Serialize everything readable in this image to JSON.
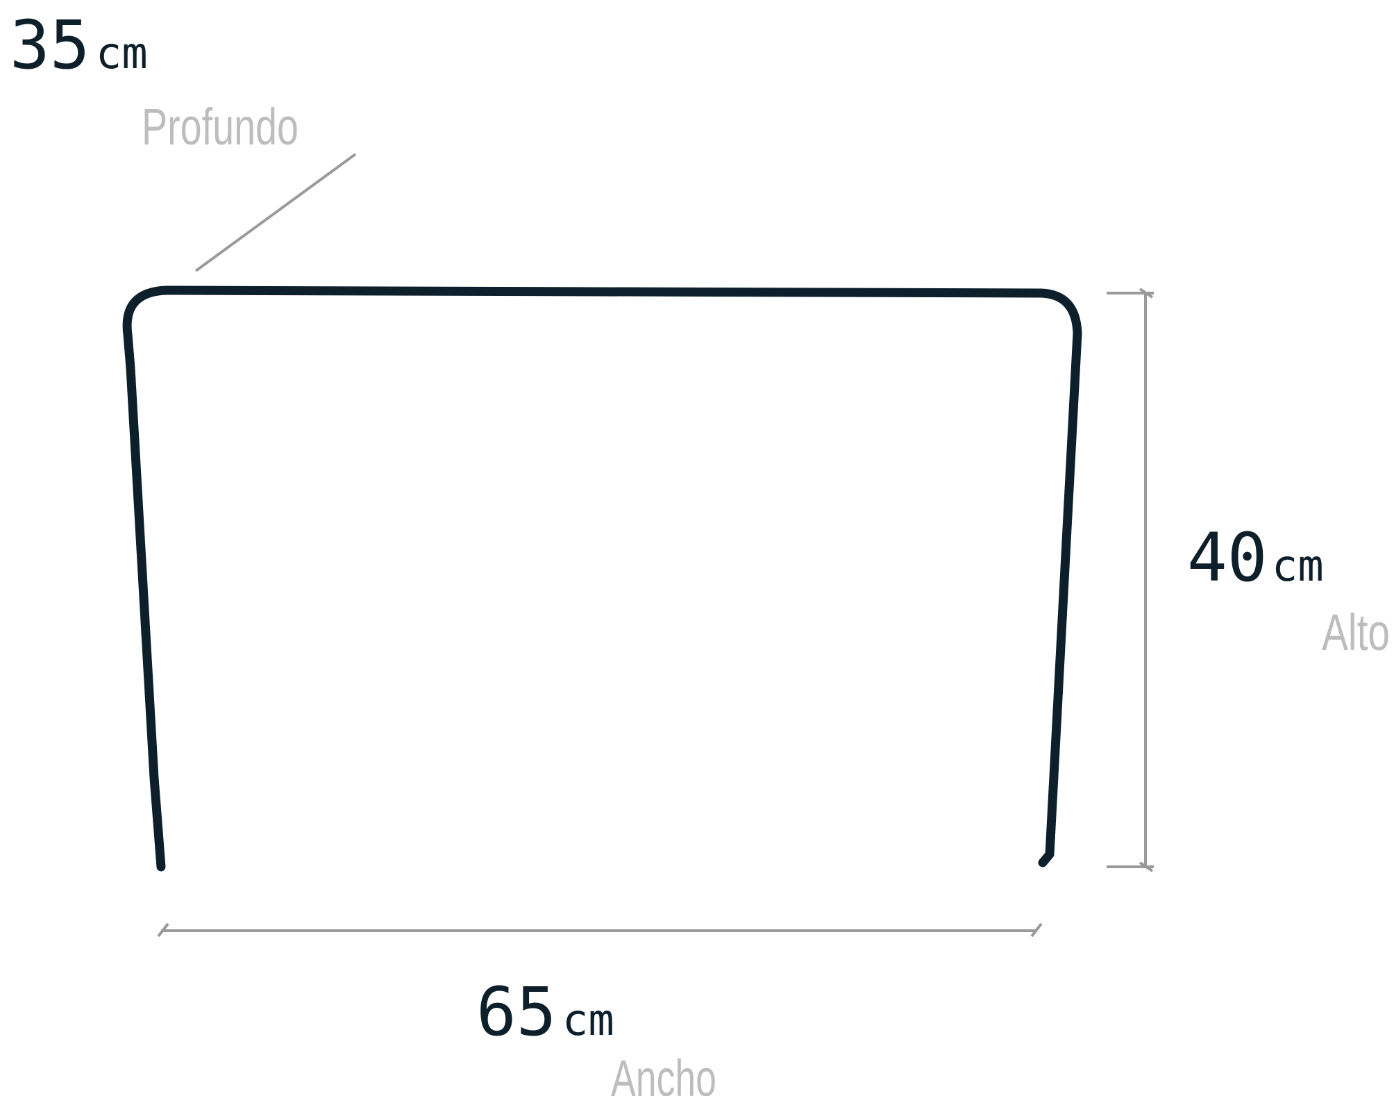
{
  "dimensions": {
    "depth": {
      "value": "35",
      "unit": "cm",
      "label": "Profundo"
    },
    "height": {
      "value": "40",
      "unit": "cm",
      "label": "Alto"
    },
    "width": {
      "value": "65",
      "unit": "cm",
      "label": "Ancho"
    }
  },
  "colors": {
    "outline": "#0c1f2a",
    "dimension_line": "#9a9a9a",
    "label": "#bdbdbd",
    "value_text": "#0c1f2a"
  }
}
